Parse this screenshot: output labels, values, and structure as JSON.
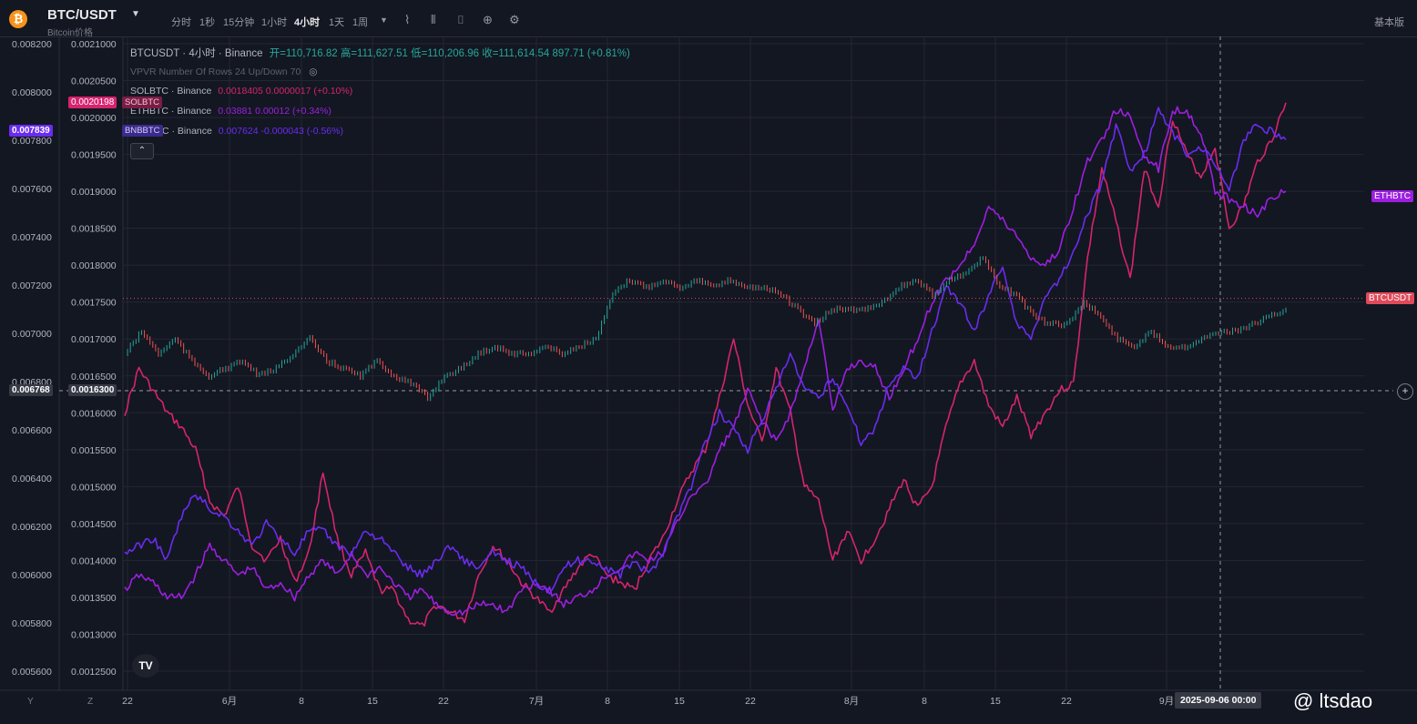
{
  "toolbar": {
    "logo_glyph": "₿",
    "symbol": "BTC/USDT",
    "symbol_sub": "Bitcoin价格",
    "timeframes": [
      "分时",
      "1秒",
      "15分钟",
      "1小时",
      "4小时",
      "1天",
      "1周"
    ],
    "active_timeframe": "4小时",
    "basic_label": "基本版",
    "icons": [
      "chevron-down-icon",
      "indicator-icon",
      "compare-icon",
      "camera-icon",
      "add-icon",
      "settings-icon"
    ]
  },
  "legend": {
    "main_name": "BTCUSDT · 4小时 · Binance",
    "ohlc": "开=110,716.82 高=111,627.51 低=110,206.96 收=111,614.54 897.71 (+0.81%)",
    "vpvr": "VPVR Number Of Rows 24 Up/Down 70",
    "sol_name": "SOLBTC · Binance",
    "sol_vals": "0.0018405 0.0000017 (+0.10%)",
    "eth_name": "ETHBTC · Binance",
    "eth_vals": "0.03881 0.00012 (+0.34%)",
    "bnb_name": "BNBBTC · Binance",
    "bnb_vals": "0.007624 -0.000043 (-0.56%)"
  },
  "badges": {
    "left_bnb": "0.007839",
    "left_sol": "0.0020198",
    "left_sol_tag": "SOLBTC",
    "left_bnb_tag": "BNBBTC",
    "left_cursor_outer": "0.006768",
    "left_cursor_inner": "0.0016300",
    "right_eth": "ETHBTC",
    "right_btc": "BTCUSDT",
    "time_box": "2025-09-06 00:00"
  },
  "watermark": "@ ltsdao",
  "tv_logo": "TV",
  "zoom_labels": [
    "Y",
    "Z"
  ],
  "colors": {
    "background": "#131722",
    "grid": "#242733",
    "sol": "#d6246e",
    "eth": "#9c1fe0",
    "bnb": "#6a2cf0",
    "candle_up": "#26a69a",
    "candle_down": "#ef5350"
  },
  "chart_data": {
    "type": "line",
    "outer_axis_ticks": [
      "0.008200",
      "0.008000",
      "0.007800",
      "0.007600",
      "0.007400",
      "0.007200",
      "0.007000",
      "0.006800",
      "0.006600",
      "0.006400",
      "0.006200",
      "0.006000",
      "0.005800",
      "0.005600"
    ],
    "inner_axis_ticks": [
      "0.0021000",
      "0.0020500",
      "0.0020000",
      "0.0019500",
      "0.0019000",
      "0.0018500",
      "0.0018000",
      "0.0017500",
      "0.0017000",
      "0.0016500",
      "0.0016000",
      "0.0015500",
      "0.0015000",
      "0.0014500",
      "0.0014000",
      "0.0013500",
      "0.0013000",
      "0.0012500"
    ],
    "x_ticks": [
      "22",
      "6月",
      "8",
      "15",
      "22",
      "7月",
      "8",
      "15",
      "22",
      "8月",
      "8",
      "15",
      "22",
      "9月"
    ],
    "x_tick_positions": [
      140,
      252,
      331,
      409,
      487,
      589,
      667,
      746,
      824,
      935,
      1015,
      1093,
      1171,
      1281
    ],
    "series": [
      {
        "name": "SOLBTC",
        "color": "#d6246e",
        "values": [
          0.0016,
          0.00166,
          0.00163,
          0.0016,
          0.00158,
          0.00155,
          0.00148,
          0.00146,
          0.0015,
          0.00142,
          0.0014,
          0.00143,
          0.00137,
          0.00141,
          0.00152,
          0.00143,
          0.00138,
          0.00141,
          0.00136,
          0.00136,
          0.00132,
          0.00131,
          0.00134,
          0.00133,
          0.00132,
          0.00138,
          0.00142,
          0.0014,
          0.00137,
          0.00135,
          0.00133,
          0.00136,
          0.00139,
          0.00141,
          0.00138,
          0.00137,
          0.00136,
          0.0014,
          0.00143,
          0.00148,
          0.00152,
          0.00155,
          0.00162,
          0.0017,
          0.00161,
          0.00156,
          0.00166,
          0.0016,
          0.0015,
          0.00148,
          0.0014,
          0.00144,
          0.0014,
          0.00143,
          0.00147,
          0.00151,
          0.00147,
          0.0015,
          0.00158,
          0.00164,
          0.00167,
          0.00161,
          0.00158,
          0.00162,
          0.00157,
          0.0016,
          0.00163,
          0.00164,
          0.00181,
          0.00193,
          0.00186,
          0.00178,
          0.00193,
          0.00188,
          0.002,
          0.00195,
          0.00192,
          0.00196,
          0.00185,
          0.00188,
          0.00194,
          0.00197,
          0.00202
        ]
      },
      {
        "name": "ETHBTC",
        "color": "#9c1fe0",
        "values": [
          0.00136,
          0.00138,
          0.00137,
          0.00135,
          0.00135,
          0.00138,
          0.00142,
          0.0014,
          0.00138,
          0.00139,
          0.00136,
          0.00137,
          0.00135,
          0.00138,
          0.0014,
          0.00138,
          0.00141,
          0.00138,
          0.00139,
          0.00137,
          0.00135,
          0.00136,
          0.00134,
          0.00133,
          0.00133,
          0.00134,
          0.00134,
          0.00133,
          0.00136,
          0.00137,
          0.00136,
          0.00134,
          0.00135,
          0.00136,
          0.00138,
          0.00139,
          0.00141,
          0.0014,
          0.00141,
          0.00145,
          0.00149,
          0.0015,
          0.00155,
          0.00158,
          0.00163,
          0.00159,
          0.00156,
          0.0016,
          0.00166,
          0.00173,
          0.0016,
          0.00166,
          0.00167,
          0.00166,
          0.00162,
          0.00166,
          0.0017,
          0.00175,
          0.00178,
          0.0018,
          0.00183,
          0.00188,
          0.00186,
          0.00184,
          0.00181,
          0.0018,
          0.00182,
          0.00188,
          0.00194,
          0.00197,
          0.00201,
          0.002,
          0.00195,
          0.00193,
          0.00201,
          0.00201,
          0.00198,
          0.0019,
          0.00189,
          0.00188,
          0.00187,
          0.00189,
          0.0019
        ]
      },
      {
        "name": "BNBBTC",
        "color": "#6a2cf0",
        "values": [
          0.00141,
          0.00142,
          0.00143,
          0.0014,
          0.00146,
          0.00149,
          0.00147,
          0.00146,
          0.00144,
          0.00142,
          0.00145,
          0.00143,
          0.00141,
          0.00144,
          0.00144,
          0.00142,
          0.00141,
          0.00144,
          0.00143,
          0.00141,
          0.00139,
          0.00138,
          0.0014,
          0.00142,
          0.0014,
          0.00139,
          0.00141,
          0.0014,
          0.00139,
          0.00137,
          0.00136,
          0.00139,
          0.0014,
          0.0014,
          0.00139,
          0.00138,
          0.0014,
          0.00138,
          0.00141,
          0.00146,
          0.0015,
          0.00156,
          0.0016,
          0.00158,
          0.00155,
          0.00159,
          0.00163,
          0.00168,
          0.00163,
          0.00162,
          0.00165,
          0.00161,
          0.00156,
          0.00158,
          0.00164,
          0.00166,
          0.00165,
          0.00171,
          0.00177,
          0.00175,
          0.00171,
          0.00176,
          0.0018,
          0.00172,
          0.0017,
          0.00176,
          0.00178,
          0.00182,
          0.00187,
          0.00191,
          0.00199,
          0.00193,
          0.00195,
          0.00201,
          0.00198,
          0.00195,
          0.00196,
          0.00194,
          0.0019,
          0.00197,
          0.00199,
          0.00198,
          0.00197
        ]
      },
      {
        "name": "BTCUSDT",
        "color": "#26a69a",
        "values": [
          0.00168,
          0.00171,
          0.00168,
          0.0017,
          0.00167,
          0.00165,
          0.00166,
          0.00167,
          0.00165,
          0.00166,
          0.00168,
          0.0017,
          0.00167,
          0.00166,
          0.00165,
          0.00167,
          0.00165,
          0.00164,
          0.00162,
          0.00165,
          0.00166,
          0.00168,
          0.00169,
          0.00168,
          0.00168,
          0.00169,
          0.00168,
          0.00169,
          0.0017,
          0.00176,
          0.00178,
          0.00177,
          0.00178,
          0.00177,
          0.00178,
          0.00177,
          0.00178,
          0.00177,
          0.00177,
          0.00176,
          0.00174,
          0.00172,
          0.00174,
          0.00174,
          0.00174,
          0.00175,
          0.00177,
          0.00178,
          0.00176,
          0.00178,
          0.00179,
          0.00181,
          0.00177,
          0.00176,
          0.00173,
          0.00172,
          0.00172,
          0.00175,
          0.00173,
          0.0017,
          0.00169,
          0.00171,
          0.00169,
          0.00169,
          0.0017,
          0.00171,
          0.00171,
          0.00172,
          0.00173,
          0.00174
        ]
      }
    ],
    "series_x_start": 137,
    "series_x_end": 1412,
    "btc_x_end": 1412,
    "inner_ylim": [
      0.00125,
      0.0021
    ],
    "cursor_value": 0.00163,
    "btc_last_price_level": 0.001755,
    "grid": true
  }
}
